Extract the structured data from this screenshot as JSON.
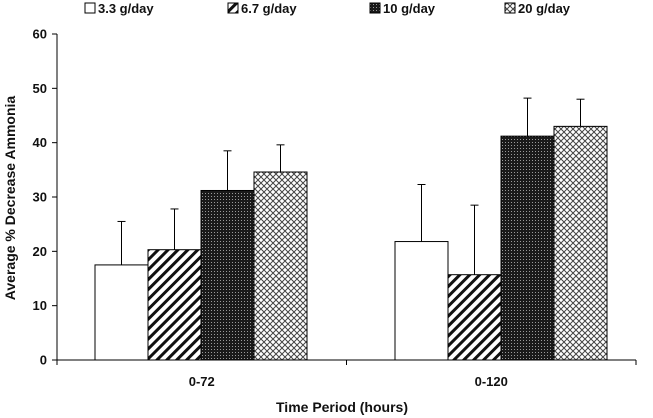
{
  "chart_data": {
    "type": "bar",
    "categories": [
      "0-72",
      "0-120"
    ],
    "series": [
      {
        "name": "3.3 g/day",
        "pattern": "white",
        "values": [
          17.5,
          21.8
        ],
        "errors": [
          8.0,
          10.5
        ]
      },
      {
        "name": "6.7 g/day",
        "pattern": "diagonal-stripes",
        "values": [
          20.3,
          15.7
        ],
        "errors": [
          7.5,
          12.8
        ]
      },
      {
        "name": "10 g/day",
        "pattern": "dark-dots",
        "values": [
          31.2,
          41.2
        ],
        "errors": [
          7.3,
          7.0
        ]
      },
      {
        "name": "20 g/day",
        "pattern": "crosshatch",
        "values": [
          34.6,
          43.0
        ],
        "errors": [
          5.0,
          5.0
        ]
      }
    ],
    "title": "",
    "xlabel": "Time Period (hours)",
    "ylabel": "Average % Decrease Ammonia",
    "ylim": [
      0,
      60
    ],
    "yticks": [
      "0",
      "10",
      "20",
      "30",
      "40",
      "50",
      "60"
    ],
    "grid": false,
    "legend_position": "top"
  }
}
